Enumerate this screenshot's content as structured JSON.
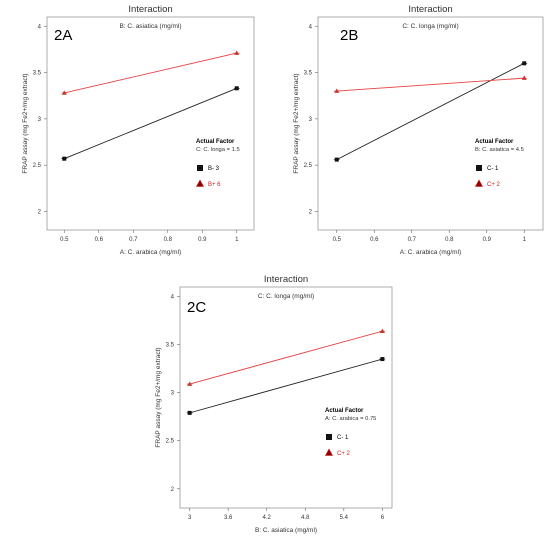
{
  "colors": {
    "black_series": "#222222",
    "red_series": "#e84040",
    "red_text": "#d81b1b",
    "frame": "#9a9a9a"
  },
  "chart_data": [
    {
      "type": "line",
      "panel_label": "2A",
      "title": "Interaction",
      "subtitle": "B: C. asiatica  (mg/ml)",
      "xlabel": "A: C. arabica (mg/ml)",
      "ylabel": "FRAP assay (mg Fe2+/mg extract)",
      "xlim": [
        0.45,
        1.05
      ],
      "ylim": [
        1.8,
        4.1
      ],
      "xticks": [
        "0.5",
        "0.6",
        "0.7",
        "0.8",
        "0.9",
        "1"
      ],
      "xtick_values": [
        0.5,
        0.6,
        0.7,
        0.8,
        0.9,
        1
      ],
      "yticks": [
        "2",
        "2.5",
        "3",
        "3.5",
        "4"
      ],
      "ytick_values": [
        2,
        2.5,
        3,
        3.5,
        4
      ],
      "x": [
        0.5,
        1
      ],
      "series": [
        {
          "name": "B- 3",
          "values": [
            2.57,
            3.33
          ],
          "marker": "square",
          "color": "#222222"
        },
        {
          "name": "B+ 6",
          "values": [
            3.28,
            3.71
          ],
          "marker": "triangle",
          "color": "#e84040"
        }
      ],
      "actual_factor": {
        "title": "Actual Factor",
        "value": "C: C. longa = 1.5"
      },
      "legend_position": "right"
    },
    {
      "type": "line",
      "panel_label": "2B",
      "title": "Interaction",
      "subtitle": "C: C. longa  (mg/ml)",
      "xlabel": "A: C. arabica (mg/ml)",
      "ylabel": "FRAP assay (mg Fe2+/mg extract)",
      "xlim": [
        0.45,
        1.05
      ],
      "ylim": [
        1.8,
        4.1
      ],
      "xticks": [
        "0.5",
        "0.6",
        "0.7",
        "0.8",
        "0.9",
        "1"
      ],
      "xtick_values": [
        0.5,
        0.6,
        0.7,
        0.8,
        0.9,
        1
      ],
      "yticks": [
        "2",
        "2.5",
        "3",
        "3.5",
        "4"
      ],
      "ytick_values": [
        2,
        2.5,
        3,
        3.5,
        4
      ],
      "x": [
        0.5,
        1
      ],
      "series": [
        {
          "name": "C- 1",
          "values": [
            2.56,
            3.6
          ],
          "marker": "square",
          "color": "#222222"
        },
        {
          "name": "C+ 2",
          "values": [
            3.3,
            3.44
          ],
          "marker": "triangle",
          "color": "#e84040"
        }
      ],
      "actual_factor": {
        "title": "Actual Factor",
        "value": "B: C. asiatica = 4.5"
      },
      "legend_position": "right"
    },
    {
      "type": "line",
      "panel_label": "2C",
      "title": "Interaction",
      "subtitle": "C: C. longa  (mg/ml)",
      "xlabel": "B: C. asiatica (mg/ml)",
      "ylabel": "FRAP assay (mg Fe2+/mg extract)",
      "xlim": [
        2.85,
        6.15
      ],
      "ylim": [
        1.8,
        4.1
      ],
      "xticks": [
        "3",
        "3.6",
        "4.2",
        "4.8",
        "5.4",
        "6"
      ],
      "xtick_values": [
        3,
        3.6,
        4.2,
        4.8,
        5.4,
        6
      ],
      "yticks": [
        "2",
        "2.5",
        "3",
        "3.5",
        "4"
      ],
      "ytick_values": [
        2,
        2.5,
        3,
        3.5,
        4
      ],
      "x": [
        3,
        6
      ],
      "series": [
        {
          "name": "C- 1",
          "values": [
            2.79,
            3.35
          ],
          "marker": "square",
          "color": "#222222"
        },
        {
          "name": "C+ 2",
          "values": [
            3.09,
            3.64
          ],
          "marker": "triangle",
          "color": "#e84040"
        }
      ],
      "actual_factor": {
        "title": "Actual Factor",
        "value": "A: C. arabica = 0.75"
      },
      "legend_position": "right"
    }
  ]
}
